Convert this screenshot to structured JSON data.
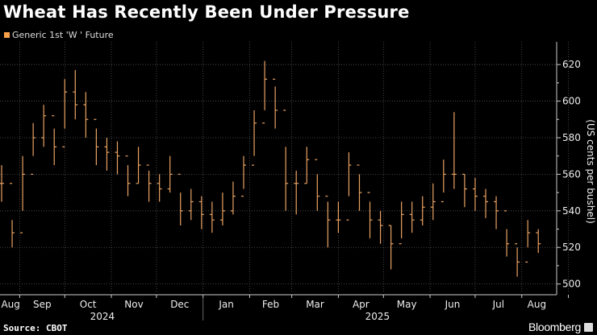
{
  "title": "Wheat Has Recently Been Under Pressure",
  "source": "Source: CBOT",
  "brand": "Bloomberg",
  "colors": {
    "series": "#e9a263",
    "legend": "#f7a14a",
    "background": "#000000",
    "grid": "#555555"
  },
  "chart_data": {
    "type": "ohlc-bar",
    "title": "Wheat Has Recently Been Under Pressure",
    "ylabel": "(US cents per bushel)",
    "ylim": [
      495,
      628
    ],
    "yticks": [
      500,
      520,
      540,
      560,
      580,
      600,
      620
    ],
    "xlim": [
      "2024-08-20",
      "2025-08-21"
    ],
    "x_month_labels": [
      "Aug",
      "Sep",
      "Oct",
      "Nov",
      "Dec",
      "Jan",
      "Feb",
      "Mar",
      "Apr",
      "May",
      "Jun",
      "Jul",
      "Aug"
    ],
    "x_year_labels": [
      "2024",
      "2025"
    ],
    "grid": true,
    "axis_position": "right",
    "legend_placement": "top-left",
    "series": [
      {
        "name": "Generic 1st 'W ' Future",
        "dates": [
          "2024-08-20",
          "2024-08-27",
          "2024-09-03",
          "2024-09-10",
          "2024-09-17",
          "2024-09-24",
          "2024-10-01",
          "2024-10-08",
          "2024-10-15",
          "2024-10-22",
          "2024-10-29",
          "2024-11-05",
          "2024-11-12",
          "2024-11-19",
          "2024-11-26",
          "2024-12-03",
          "2024-12-10",
          "2024-12-17",
          "2024-12-24",
          "2024-12-31",
          "2025-01-07",
          "2025-01-14",
          "2025-01-21",
          "2025-01-28",
          "2025-02-04",
          "2025-02-11",
          "2025-02-18",
          "2025-02-25",
          "2025-03-04",
          "2025-03-11",
          "2025-03-18",
          "2025-03-25",
          "2025-04-01",
          "2025-04-08",
          "2025-04-15",
          "2025-04-22",
          "2025-04-29",
          "2025-05-06",
          "2025-05-13",
          "2025-05-20",
          "2025-05-27",
          "2025-06-03",
          "2025-06-10",
          "2025-06-17",
          "2025-06-24",
          "2025-07-01",
          "2025-07-08",
          "2025-07-15",
          "2025-07-22",
          "2025-07-29",
          "2025-08-05",
          "2025-08-12"
        ],
        "high": [
          565,
          535,
          570,
          588,
          598,
          585,
          612,
          617,
          605,
          585,
          580,
          578,
          565,
          575,
          562,
          560,
          570,
          550,
          552,
          548,
          545,
          550,
          556,
          570,
          595,
          622,
          608,
          575,
          562,
          575,
          560,
          545,
          545,
          572,
          560,
          545,
          540,
          532,
          545,
          545,
          548,
          555,
          568,
          594,
          560,
          558,
          552,
          548,
          530,
          520,
          535,
          530
        ],
        "low": [
          545,
          520,
          540,
          570,
          575,
          565,
          585,
          590,
          580,
          565,
          562,
          560,
          548,
          555,
          545,
          545,
          550,
          532,
          535,
          530,
          528,
          532,
          538,
          552,
          570,
          595,
          585,
          540,
          538,
          555,
          540,
          520,
          528,
          548,
          540,
          525,
          522,
          508,
          525,
          528,
          532,
          535,
          550,
          552,
          542,
          540,
          536,
          530,
          515,
          504,
          520,
          517
        ],
        "close": [
          555,
          528,
          560,
          580,
          592,
          575,
          605,
          598,
          590,
          575,
          572,
          570,
          555,
          565,
          555,
          552,
          560,
          540,
          545,
          538,
          535,
          540,
          548,
          565,
          588,
          612,
          595,
          555,
          555,
          568,
          548,
          535,
          535,
          565,
          550,
          535,
          532,
          522,
          538,
          535,
          542,
          545,
          560,
          560,
          552,
          548,
          545,
          540,
          522,
          512,
          528,
          522
        ]
      }
    ]
  }
}
